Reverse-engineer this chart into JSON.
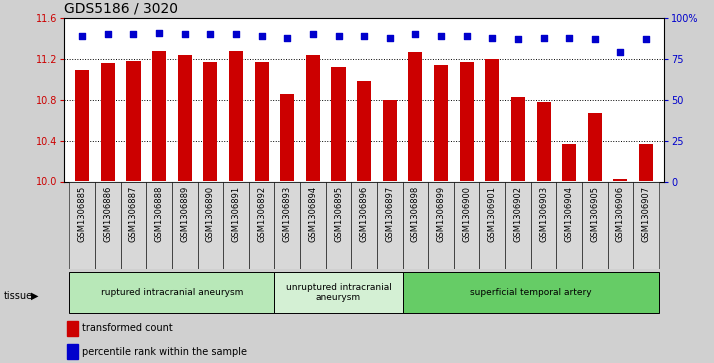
{
  "title": "GDS5186 / 3020",
  "samples": [
    "GSM1306885",
    "GSM1306886",
    "GSM1306887",
    "GSM1306888",
    "GSM1306889",
    "GSM1306890",
    "GSM1306891",
    "GSM1306892",
    "GSM1306893",
    "GSM1306894",
    "GSM1306895",
    "GSM1306896",
    "GSM1306897",
    "GSM1306898",
    "GSM1306899",
    "GSM1306900",
    "GSM1306901",
    "GSM1306902",
    "GSM1306903",
    "GSM1306904",
    "GSM1306905",
    "GSM1306906",
    "GSM1306907"
  ],
  "bar_values": [
    11.09,
    11.16,
    11.18,
    11.28,
    11.24,
    11.17,
    11.28,
    11.17,
    10.86,
    11.24,
    11.12,
    10.98,
    10.8,
    11.27,
    11.14,
    11.17,
    11.2,
    10.83,
    10.78,
    10.37,
    10.67,
    10.02,
    10.37
  ],
  "percentile_values": [
    89,
    90,
    90,
    91,
    90,
    90,
    90,
    89,
    88,
    90,
    89,
    89,
    88,
    90,
    89,
    89,
    88,
    87,
    88,
    88,
    87,
    79,
    87
  ],
  "bar_color": "#cc0000",
  "dot_color": "#0000cc",
  "ylim_left": [
    10,
    11.6
  ],
  "ylim_right": [
    0,
    100
  ],
  "yticks_left": [
    10,
    10.4,
    10.8,
    11.2,
    11.6
  ],
  "yticks_right": [
    0,
    25,
    50,
    75,
    100
  ],
  "ytick_labels_right": [
    "0",
    "25",
    "50",
    "75",
    "100%"
  ],
  "grid_values": [
    10.4,
    10.8,
    11.2
  ],
  "tissue_groups": [
    {
      "label": "ruptured intracranial aneurysm",
      "start": 0,
      "end": 8,
      "color": "#b8e8b8"
    },
    {
      "label": "unruptured intracranial\naneurysm",
      "start": 8,
      "end": 13,
      "color": "#d4f0d4"
    },
    {
      "label": "superficial temporal artery",
      "start": 13,
      "end": 23,
      "color": "#66cc66"
    }
  ],
  "tissue_label": "tissue",
  "legend_bar_label": "transformed count",
  "legend_dot_label": "percentile rank within the sample",
  "background_color": "#d0d0d0",
  "xticklabel_bg": "#d0d0d0",
  "plot_bg_color": "#ffffff",
  "title_fontsize": 10,
  "tick_fontsize": 7,
  "axis_color_left": "#cc0000",
  "axis_color_right": "#0000cc",
  "n_samples": 23
}
